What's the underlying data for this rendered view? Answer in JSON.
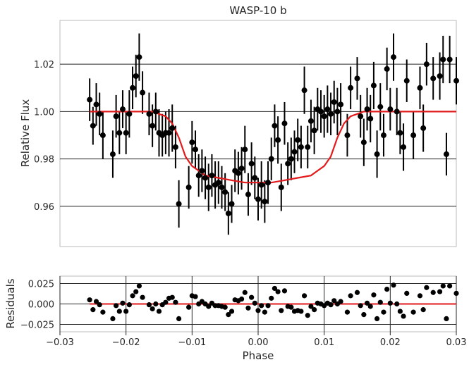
{
  "chart_data": [
    {
      "type": "scatter",
      "title": "WASP-10 b",
      "xlabel": "",
      "ylabel": "Relative Flux",
      "xlim": [
        -0.03,
        0.03
      ],
      "ylim": [
        0.943,
        1.0385
      ],
      "yticks": [
        0.96,
        0.98,
        1.0,
        1.02
      ],
      "ytick_labels": [
        "0.96",
        "0.98",
        "1.00",
        "1.02"
      ],
      "grid": "horizontal",
      "series": [
        {
          "kind": "points-with-errorbars",
          "color": "#000000",
          "x": [
            -0.0255,
            -0.025,
            -0.0245,
            -0.024,
            -0.0235,
            -0.022,
            -0.0215,
            -0.021,
            -0.0205,
            -0.02,
            -0.0195,
            -0.019,
            -0.0185,
            -0.018,
            -0.0175,
            -0.0165,
            -0.016,
            -0.0155,
            -0.015,
            -0.0145,
            -0.014,
            -0.0135,
            -0.013,
            -0.0125,
            -0.012,
            -0.0105,
            -0.01,
            -0.0095,
            -0.009,
            -0.0085,
            -0.008,
            -0.0075,
            -0.007,
            -0.0065,
            -0.006,
            -0.0055,
            -0.005,
            -0.0045,
            -0.004,
            -0.0035,
            -0.003,
            -0.0025,
            -0.002,
            -0.0015,
            -0.001,
            -0.0005,
            0.0,
            0.0005,
            0.001,
            0.0015,
            0.002,
            0.0025,
            0.003,
            0.0035,
            0.004,
            0.0045,
            0.005,
            0.0055,
            0.006,
            0.0065,
            0.007,
            0.0075,
            0.008,
            0.0085,
            0.009,
            0.0095,
            0.01,
            0.0105,
            0.011,
            0.0115,
            0.012,
            0.0125,
            0.0135,
            0.014,
            0.015,
            0.0155,
            0.016,
            0.0165,
            0.017,
            0.0175,
            0.018,
            0.0185,
            0.019,
            0.0195,
            0.02,
            0.0205,
            0.021,
            0.0215,
            0.022,
            0.0225,
            0.0235,
            0.0245,
            0.025,
            0.0255,
            0.0265,
            0.0275,
            0.028,
            0.0285,
            0.029,
            0.03
          ],
          "y": [
            1.005,
            0.994,
            1.003,
            0.999,
            0.99,
            0.982,
            0.998,
            0.991,
            1.001,
            0.991,
            0.999,
            1.01,
            1.015,
            1.023,
            1.008,
            0.999,
            0.994,
            1.0,
            0.991,
            0.99,
            0.991,
            0.991,
            0.993,
            0.985,
            0.961,
            0.968,
            0.987,
            0.984,
            0.973,
            0.975,
            0.972,
            0.968,
            0.973,
            0.969,
            0.97,
            0.968,
            0.966,
            0.957,
            0.961,
            0.975,
            0.974,
            0.976,
            0.984,
            0.965,
            0.978,
            0.972,
            0.963,
            0.969,
            0.962,
            0.97,
            0.98,
            0.994,
            0.988,
            0.968,
            0.995,
            0.978,
            0.98,
            0.983,
            0.988,
            0.985,
            1.009,
            0.985,
            0.996,
            0.992,
            1.001,
            1.0,
            0.998,
            1.001,
            0.999,
            1.004,
            1.0,
            1.003,
            0.99,
            1.01,
            1.014,
            0.998,
            0.987,
            1.001,
            0.997,
            1.011,
            0.982,
            1.002,
            0.99,
            1.018,
            1.001,
            1.023,
            1.0,
            0.991,
            0.985,
            1.013,
            0.99,
            1.01,
            0.993,
            1.02,
            1.014,
            1.015,
            1.022,
            0.982,
            1.022,
            1.013
          ],
          "yerr": [
            0.009,
            0.008,
            0.009,
            0.009,
            0.01,
            0.01,
            0.009,
            0.009,
            0.008,
            0.009,
            0.01,
            0.009,
            0.009,
            0.01,
            0.009,
            0.009,
            0.009,
            0.008,
            0.01,
            0.009,
            0.009,
            0.01,
            0.01,
            0.009,
            0.01,
            0.009,
            0.009,
            0.008,
            0.009,
            0.009,
            0.009,
            0.01,
            0.009,
            0.01,
            0.009,
            0.009,
            0.008,
            0.009,
            0.008,
            0.009,
            0.009,
            0.009,
            0.01,
            0.009,
            0.009,
            0.009,
            0.009,
            0.01,
            0.009,
            0.009,
            0.009,
            0.009,
            0.01,
            0.01,
            0.009,
            0.009,
            0.009,
            0.009,
            0.009,
            0.009,
            0.01,
            0.009,
            0.009,
            0.01,
            0.009,
            0.009,
            0.009,
            0.01,
            0.009,
            0.009,
            0.01,
            0.009,
            0.009,
            0.009,
            0.009,
            0.009,
            0.01,
            0.009,
            0.01,
            0.01,
            0.01,
            0.01,
            0.009,
            0.009,
            0.009,
            0.01,
            0.01,
            0.009,
            0.01,
            0.009,
            0.01,
            0.009,
            0.01,
            0.009,
            0.009,
            0.01,
            0.01,
            0.009,
            0.01,
            0.01
          ]
        },
        {
          "kind": "model-curve",
          "color": "#e31a1c",
          "x": [
            -0.0255,
            -0.016,
            -0.015,
            -0.014,
            -0.013,
            -0.012,
            -0.011,
            -0.01,
            -0.009,
            -0.008,
            -0.006,
            -0.004,
            -0.002,
            0.0,
            0.002,
            0.004,
            0.006,
            0.008,
            0.009,
            0.01,
            0.011,
            0.012,
            0.013,
            0.014,
            0.015,
            0.016,
            0.03
          ],
          "y": [
            1.0,
            1.0,
            0.999,
            0.998,
            0.995,
            0.989,
            0.981,
            0.977,
            0.975,
            0.973,
            0.972,
            0.971,
            0.97,
            0.97,
            0.97,
            0.971,
            0.972,
            0.973,
            0.975,
            0.977,
            0.981,
            0.989,
            0.995,
            0.998,
            0.999,
            1.0,
            1.0
          ]
        }
      ]
    },
    {
      "type": "scatter",
      "title": "",
      "xlabel": "Phase",
      "ylabel": "Residuals",
      "xlim": [
        -0.03,
        0.03
      ],
      "ylim": [
        -0.034,
        0.034
      ],
      "xticks": [
        -0.03,
        -0.02,
        -0.01,
        0.0,
        0.01,
        0.02,
        0.03
      ],
      "xtick_labels": [
        "−0.03",
        "−0.02",
        "−0.01",
        "0.00",
        "0.01",
        "0.02",
        "0.03"
      ],
      "yticks": [
        -0.025,
        0.0,
        0.025
      ],
      "ytick_labels": [
        "−0.025",
        "0.000",
        "0.025"
      ],
      "grid": "both",
      "series": [
        {
          "kind": "points",
          "color": "#000000",
          "x": [
            -0.0255,
            -0.025,
            -0.0245,
            -0.024,
            -0.0235,
            -0.022,
            -0.0215,
            -0.021,
            -0.0205,
            -0.02,
            -0.0195,
            -0.019,
            -0.0185,
            -0.018,
            -0.0175,
            -0.0165,
            -0.016,
            -0.0155,
            -0.015,
            -0.0145,
            -0.014,
            -0.0135,
            -0.013,
            -0.0125,
            -0.012,
            -0.0105,
            -0.01,
            -0.0095,
            -0.009,
            -0.0085,
            -0.008,
            -0.0075,
            -0.007,
            -0.0065,
            -0.006,
            -0.0055,
            -0.005,
            -0.0045,
            -0.004,
            -0.0035,
            -0.003,
            -0.0025,
            -0.002,
            -0.0015,
            -0.001,
            -0.0005,
            0.0,
            0.0005,
            0.001,
            0.0015,
            0.002,
            0.0025,
            0.003,
            0.0035,
            0.004,
            0.0045,
            0.005,
            0.0055,
            0.006,
            0.0065,
            0.007,
            0.0075,
            0.008,
            0.0085,
            0.009,
            0.0095,
            0.01,
            0.0105,
            0.011,
            0.0115,
            0.012,
            0.0125,
            0.0135,
            0.014,
            0.015,
            0.0155,
            0.016,
            0.0165,
            0.017,
            0.0175,
            0.018,
            0.0185,
            0.019,
            0.0195,
            0.02,
            0.0205,
            0.021,
            0.0215,
            0.022,
            0.0225,
            0.0235,
            0.0245,
            0.025,
            0.0255,
            0.0265,
            0.0275,
            0.028,
            0.0285,
            0.029,
            0.03
          ],
          "y": [
            0.005,
            -0.007,
            0.003,
            -0.001,
            -0.01,
            -0.018,
            -0.002,
            -0.009,
            0.001,
            -0.009,
            -0.001,
            0.01,
            0.015,
            0.022,
            0.008,
            -0.001,
            -0.006,
            0.0,
            -0.009,
            -0.001,
            0.002,
            0.007,
            0.008,
            0.002,
            -0.018,
            -0.004,
            0.01,
            0.009,
            0.0,
            0.003,
            0.0,
            -0.003,
            0.001,
            -0.002,
            -0.002,
            -0.003,
            -0.004,
            -0.013,
            -0.009,
            0.005,
            0.004,
            0.006,
            0.014,
            -0.005,
            0.008,
            0.001,
            -0.008,
            -0.002,
            -0.01,
            -0.002,
            0.007,
            0.019,
            0.015,
            -0.008,
            0.016,
            -0.003,
            -0.004,
            -0.009,
            -0.008,
            -0.009,
            0.01,
            -0.014,
            -0.003,
            -0.007,
            0.001,
            0.0,
            -0.002,
            0.001,
            -0.001,
            0.004,
            0.0,
            0.003,
            -0.01,
            0.01,
            0.014,
            -0.002,
            -0.013,
            0.001,
            -0.003,
            0.011,
            -0.018,
            0.002,
            -0.01,
            0.018,
            0.001,
            0.023,
            0.0,
            -0.009,
            -0.015,
            0.013,
            -0.01,
            0.01,
            -0.007,
            0.02,
            0.014,
            0.015,
            0.022,
            -0.018,
            0.022,
            0.013
          ]
        },
        {
          "kind": "zero-line",
          "color": "#e31a1c",
          "x": [
            -0.0255,
            0.03
          ],
          "y": [
            0.0,
            0.0
          ]
        }
      ]
    }
  ]
}
